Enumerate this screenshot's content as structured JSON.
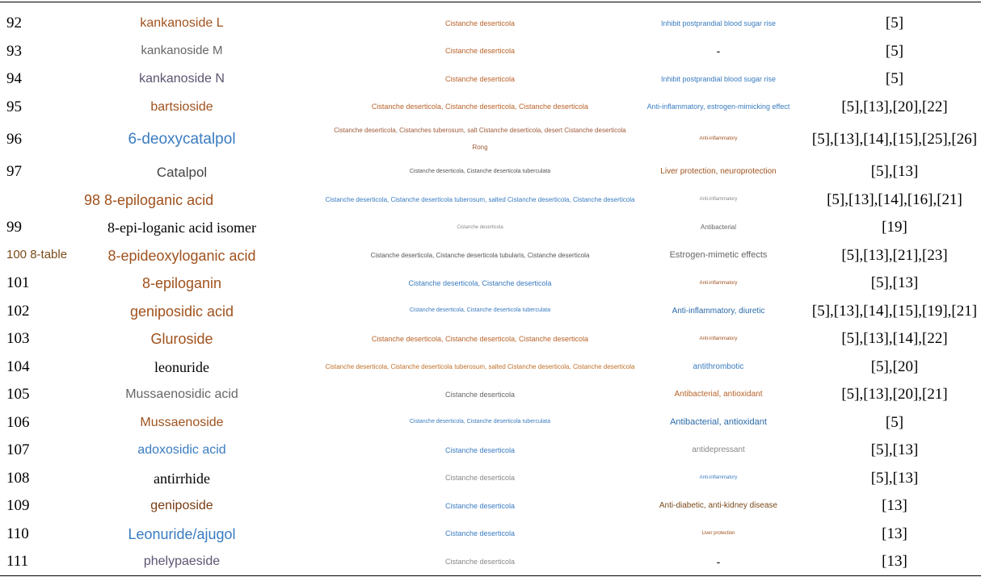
{
  "table": {
    "rows": [
      [
        "92",
        "kankanoside L",
        "Cistanche deserticola",
        "Inhibit postprandial blood sugar rise",
        "[5]"
      ],
      [
        "93",
        "kankanoside M",
        "Cistanche deserticola",
        "-",
        "[5]"
      ],
      [
        "94",
        "kankanoside N",
        "Cistanche deserticola",
        "Inhibit postprandial blood sugar rise",
        "[5]"
      ],
      [
        "95",
        "bartsioside",
        "Cistanche deserticola, Cistanche deserticola, Cistanche deserticola",
        "Anti-inflammatory, estrogen-mimicking effect",
        "[5],[13],[20],[22]"
      ],
      [
        "96",
        "6-deoxycatalpol",
        "Cistanche deserticola, Cistanches tuberosum, salt Cistanche deserticola, desert Cistanche deserticola Rong",
        "Anti-inflammatory",
        "[5],[13],[14],[15],[25],[26]"
      ],
      [
        "97",
        "Catalpol",
        "Cistanche deserticola, Cistanche deserticola tuberculata",
        "Liver protection, neuroprotection",
        "[5],[13]"
      ],
      [
        null,
        "98 8-epiloganic acid",
        "Cistanche deserticola, Cistanche deserticola tuberosum, salted Cistanche deserticola, Cistanche deserticola",
        "Anti-inflammatory",
        "[5],[13],[14],[16],[21]"
      ],
      [
        "99",
        "8-epi-loganic acid isomer",
        "Cistanche deserticola",
        "Antibacterial",
        "[19]"
      ],
      [
        "100 8-table",
        "8-epideoxyloganic acid",
        "Cistanche deserticola, Cistanche deserticola tubularis, Cistanche deserticola",
        "Estrogen-mimetic effects",
        "[5],[13],[21],[23]"
      ],
      [
        "101",
        "8-epiloganin",
        "Cistanche deserticola, Cistanche deserticola",
        "Anti-inflammatory",
        "[5],[13]"
      ],
      [
        "102",
        "geniposidic acid",
        "Cistanche deserticola, Cistanche deserticola tuberculata",
        "Anti-inflammatory, diuretic",
        "[5],[13],[14],[15],[19],[21]"
      ],
      [
        "103",
        "Gluroside",
        "Cistanche deserticola, Cistanche deserticola, Cistanche deserticola",
        "Anti-inflammatory",
        "[5],[13],[14],[22]"
      ],
      [
        "104",
        "leonuride",
        "Cistanche deserticola, Cistanche deserticola tuberosum, salted Cistanche deserticola, Cistanche deserticola",
        "antithrombotic",
        "[5],[20]"
      ],
      [
        "105",
        "Mussaenosidic acid",
        "Cistanche deserticola",
        "Antibacterial, antioxidant",
        "[5],[13],[20],[21]"
      ],
      [
        "106",
        "Mussaenoside",
        "Cistanche deserticola, Cistanche deserticola tuberculata",
        "Antibacterial, antioxidant",
        "[5]"
      ],
      [
        "107",
        "adoxosidic acid",
        "Cistanche deserticola",
        "antidepressant",
        "[5],[13]"
      ],
      [
        "108",
        "antirrhide",
        "Cistanche deserticola",
        "Anti-inflammatory",
        "[5],[13]"
      ],
      [
        "109",
        "geniposide",
        "Cistanche deserticola",
        "Anti-diabetic, anti-kidney disease",
        "[13]"
      ],
      [
        "110",
        "Leonuride/ajugol",
        "Cistanche deserticola",
        "Liver protection",
        "[13]"
      ],
      [
        "111",
        "phelypaeside",
        "Cistanche deserticola",
        "-",
        "[13]"
      ]
    ]
  }
}
